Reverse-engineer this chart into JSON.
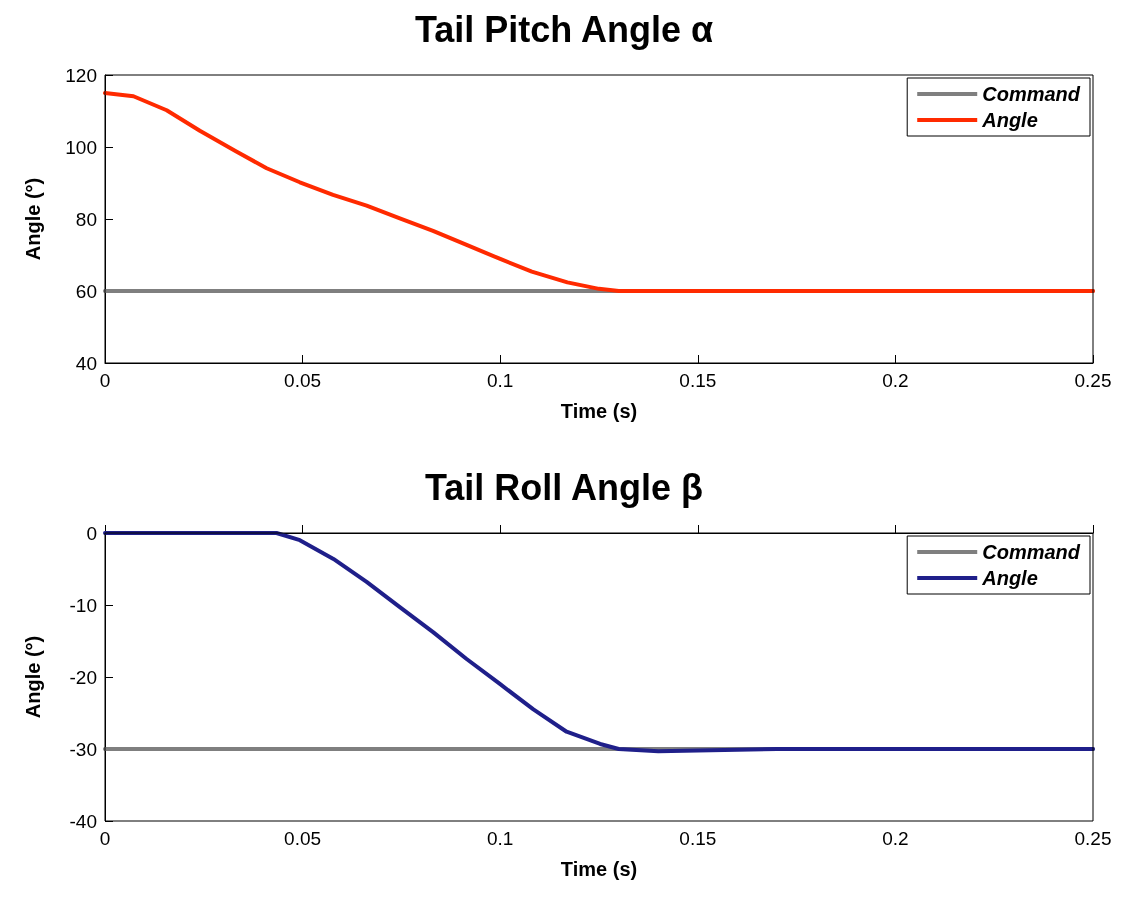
{
  "chart_data": [
    {
      "type": "line",
      "title": "Tail Pitch Angle α",
      "xlabel": "Time (s)",
      "ylabel": "Angle (°)",
      "xlim": [
        0,
        0.25
      ],
      "xticks": [
        0,
        0.05,
        0.1,
        0.15,
        0.2,
        0.25
      ],
      "ylim": [
        40,
        120
      ],
      "yticks": [
        40,
        60,
        80,
        100,
        120
      ],
      "grid": false,
      "legend": "top right",
      "marker": "none",
      "line_style": "solid",
      "series": [
        {
          "name": "Command",
          "color": "#7f7f7f",
          "x": [
            0,
            0.25
          ],
          "values": [
            60,
            60
          ]
        },
        {
          "name": "Angle",
          "color": "#ff2a00",
          "x": [
            0,
            0.0072,
            0.0156,
            0.024,
            0.033,
            0.0409,
            0.0493,
            0.0577,
            0.0662,
            0.0746,
            0.083,
            0.0915,
            0.1,
            0.108,
            0.117,
            0.125,
            0.13,
            0.14,
            0.25
          ],
          "values": [
            115,
            114.1,
            110.2,
            104.5,
            98.9,
            94.1,
            90.2,
            86.7,
            83.7,
            80.2,
            76.7,
            72.8,
            68.9,
            65.4,
            62.4,
            60.6,
            60,
            60,
            60
          ]
        }
      ]
    },
    {
      "type": "line",
      "title": "Tail Roll Angle β",
      "xlabel": "Time (s)",
      "ylabel": "Angle (°)",
      "xlim": [
        0,
        0.25
      ],
      "xticks": [
        0,
        0.05,
        0.1,
        0.15,
        0.2,
        0.25
      ],
      "ylim": [
        -40,
        0
      ],
      "yticks": [
        -40,
        -30,
        -20,
        -10,
        0
      ],
      "grid": false,
      "legend": "top right",
      "marker": "none",
      "line_style": "solid",
      "series": [
        {
          "name": "Command",
          "color": "#7f7f7f",
          "x": [
            0,
            0.25
          ],
          "values": [
            -30,
            -30
          ]
        },
        {
          "name": "Angle",
          "color": "#1f1f8a",
          "x": [
            0,
            0.0434,
            0.0493,
            0.0578,
            0.0662,
            0.0746,
            0.0831,
            0.0915,
            0.1,
            0.1084,
            0.1168,
            0.1253,
            0.13,
            0.14,
            0.17,
            0.25
          ],
          "values": [
            0,
            0,
            -1,
            -3.6,
            -6.8,
            -10.3,
            -13.8,
            -17.5,
            -21,
            -24.5,
            -27.6,
            -29.3,
            -30,
            -30.3,
            -30,
            -30
          ]
        }
      ]
    }
  ]
}
